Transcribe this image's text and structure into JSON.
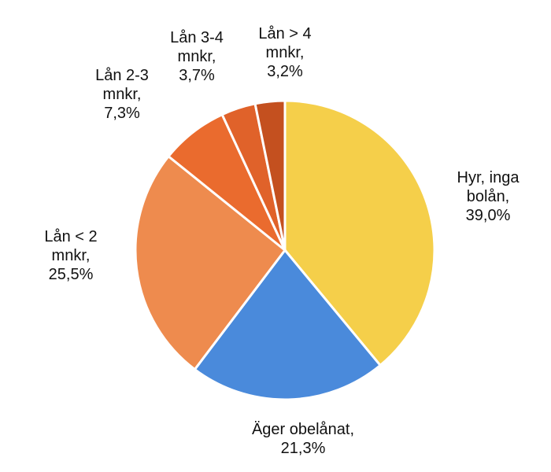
{
  "chart_data": {
    "type": "pie",
    "categories": [
      "Hyr, inga bolån,",
      "Äger obelånat,",
      "Lån < 2 mnkr,",
      "Lån 2-3 mnkr,",
      "Lån 3-4 mnkr,",
      "Lån > 4 mnkr,"
    ],
    "values": [
      39.0,
      21.3,
      25.5,
      7.3,
      3.7,
      3.2
    ],
    "value_labels": [
      "39,0%",
      "21,3%",
      "25,5%",
      "7,3%",
      "3,7%",
      "3,2%"
    ],
    "colors": [
      "#F5CF4A",
      "#4A8ADB",
      "#EE8B4E",
      "#EA6B2E",
      "#E0622A",
      "#C4501F"
    ]
  }
}
